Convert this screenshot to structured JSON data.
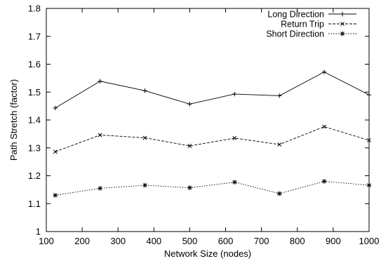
{
  "chart_data": {
    "type": "line",
    "title": "",
    "xlabel": "Network Size (nodes)",
    "ylabel": "Path Stretch (factor)",
    "xlim": [
      100,
      1000
    ],
    "ylim": [
      1,
      1.8
    ],
    "x": [
      125,
      250,
      375,
      500,
      625,
      750,
      875,
      1000
    ],
    "xticks": [
      100,
      200,
      300,
      400,
      500,
      600,
      700,
      800,
      900,
      1000
    ],
    "yticks": [
      1,
      1.1,
      1.2,
      1.3,
      1.4,
      1.5,
      1.6,
      1.7,
      1.8
    ],
    "grid": false,
    "legend_position": "top-right",
    "series": [
      {
        "name": "Long Direction",
        "values": [
          1.443,
          1.539,
          1.505,
          1.457,
          1.493,
          1.487,
          1.572,
          1.49
        ],
        "line_style": "solid",
        "marker": "plus"
      },
      {
        "name": "Return Trip",
        "values": [
          1.286,
          1.346,
          1.336,
          1.307,
          1.335,
          1.312,
          1.376,
          1.327
        ],
        "line_style": "dashed",
        "marker": "cross"
      },
      {
        "name": "Short Direction",
        "values": [
          1.13,
          1.155,
          1.166,
          1.157,
          1.177,
          1.136,
          1.18,
          1.166
        ],
        "line_style": "dotted",
        "marker": "star"
      }
    ]
  }
}
